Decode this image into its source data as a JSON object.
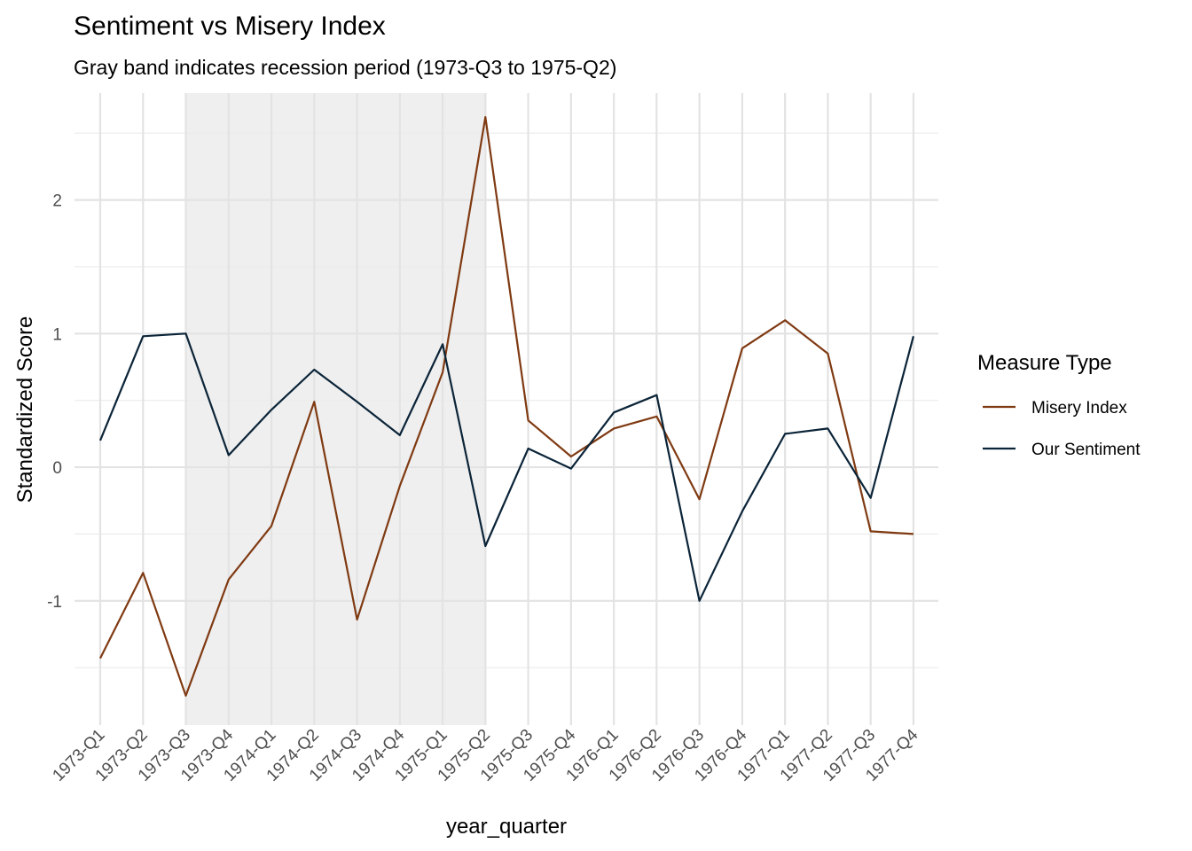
{
  "chart_data": {
    "type": "line",
    "title": "Sentiment vs Misery Index",
    "subtitle": "Gray band indicates recession period (1973-Q3 to 1975-Q2)",
    "xlabel": "year_quarter",
    "ylabel": "Standardized Score",
    "categories": [
      "1973-Q1",
      "1973-Q2",
      "1973-Q3",
      "1973-Q4",
      "1974-Q1",
      "1974-Q2",
      "1974-Q3",
      "1974-Q4",
      "1975-Q1",
      "1975-Q2",
      "1975-Q3",
      "1975-Q4",
      "1976-Q1",
      "1976-Q2",
      "1976-Q3",
      "1976-Q4",
      "1977-Q1",
      "1977-Q2",
      "1977-Q3",
      "1977-Q4"
    ],
    "ylim": [
      -1.93,
      2.8
    ],
    "y_ticks": [
      -1,
      0,
      1,
      2
    ],
    "y_tick_labels": [
      "-1",
      "0",
      "1",
      "2"
    ],
    "grid": true,
    "recession_band": {
      "start": "1973-Q3",
      "end": "1975-Q2",
      "color": "#efefef"
    },
    "legend": {
      "title": "Measure Type",
      "placement": "right"
    },
    "series": [
      {
        "name": "Misery Index",
        "color": "#7f3a12",
        "values": [
          -1.43,
          -0.79,
          -1.71,
          -0.84,
          -0.44,
          0.49,
          -1.14,
          -0.14,
          0.71,
          2.62,
          0.35,
          0.08,
          0.29,
          0.38,
          -0.24,
          0.89,
          1.1,
          0.85,
          -0.48,
          -0.5
        ]
      },
      {
        "name": "Our Sentiment",
        "color": "#0b2438",
        "values": [
          0.2,
          0.98,
          1.0,
          0.09,
          0.43,
          0.73,
          0.49,
          0.24,
          0.92,
          -0.59,
          0.14,
          -0.01,
          0.41,
          0.54,
          -1.0,
          -0.33,
          0.25,
          0.29,
          -0.23,
          0.98
        ]
      }
    ]
  }
}
